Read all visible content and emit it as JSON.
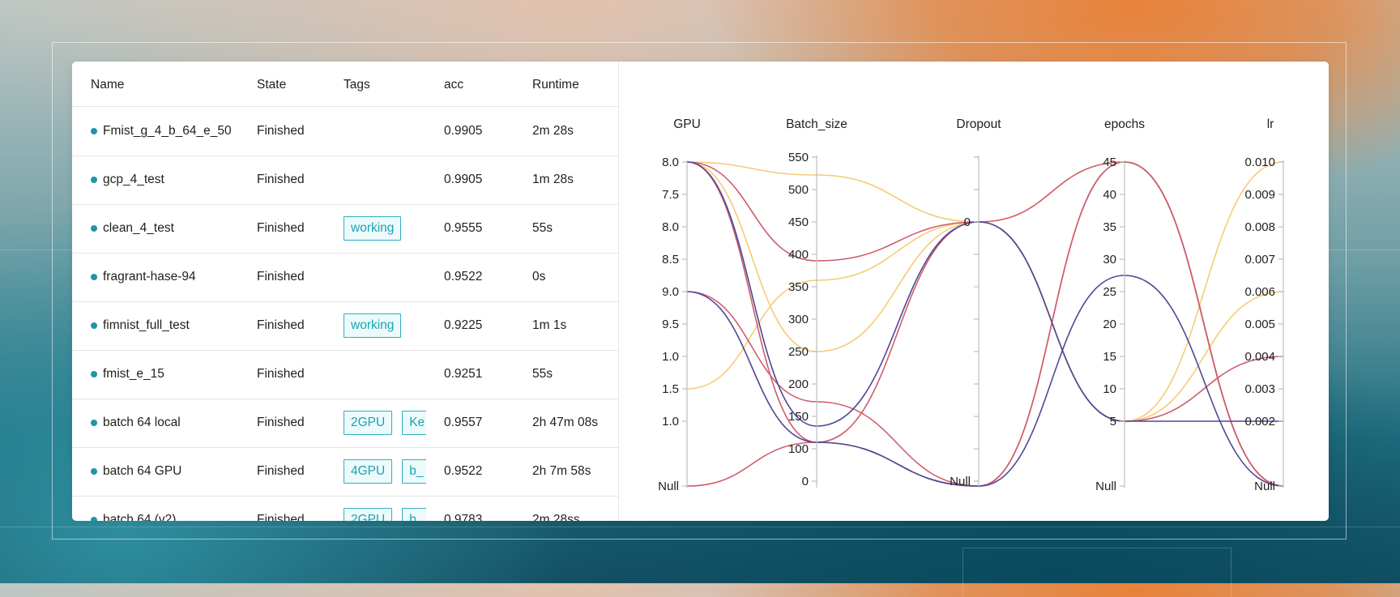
{
  "table": {
    "columns": [
      "Name",
      "State",
      "Tags",
      "acc",
      "Runtime"
    ],
    "rows": [
      {
        "name": "Fmist_g_4_b_64_e_50",
        "state": "Finished",
        "tags": [],
        "acc": "0.9905",
        "runtime": "2m 28s"
      },
      {
        "name": "gcp_4_test",
        "state": "Finished",
        "tags": [],
        "acc": "0.9905",
        "runtime": "1m 28s"
      },
      {
        "name": "clean_4_test",
        "state": "Finished",
        "tags": [
          "working"
        ],
        "acc": "0.9555",
        "runtime": "55s"
      },
      {
        "name": "fragrant-hase-94",
        "state": "Finished",
        "tags": [],
        "acc": "0.9522",
        "runtime": "0s"
      },
      {
        "name": "fimnist_full_test",
        "state": "Finished",
        "tags": [
          "working"
        ],
        "acc": "0.9225",
        "runtime": "1m 1s"
      },
      {
        "name": "fmist_e_15",
        "state": "Finished",
        "tags": [],
        "acc": "0.9251",
        "runtime": "55s"
      },
      {
        "name": "batch 64 local",
        "state": "Finished",
        "tags": [
          "2GPU",
          "Ke"
        ],
        "acc": "0.9557",
        "runtime": "2h 47m 08s"
      },
      {
        "name": "batch 64 GPU",
        "state": "Finished",
        "tags": [
          "4GPU",
          "b_"
        ],
        "acc": "0.9522",
        "runtime": "2h 7m 58s"
      },
      {
        "name": "batch 64 (v2)",
        "state": "Finished",
        "tags": [
          "2GPU",
          "b_"
        ],
        "acc": "0.9783",
        "runtime": "2m 28ss"
      }
    ]
  },
  "chart_data": {
    "type": "parallel_coordinates",
    "axes": [
      {
        "name": "GPU",
        "ticks": [
          "8.0",
          "7.5",
          "8.0",
          "8.5",
          "9.0",
          "9.5",
          "1.0",
          "1.5",
          "1.0",
          "Null"
        ]
      },
      {
        "name": "Batch_size",
        "ticks": [
          "550",
          "500",
          "450",
          "400",
          "350",
          "300",
          "250",
          "200",
          "150",
          "100",
          "0"
        ]
      },
      {
        "name": "Dropout",
        "ticks": [
          "0",
          "Null"
        ]
      },
      {
        "name": "epochs",
        "ticks": [
          "45",
          "40",
          "35",
          "30",
          "25",
          "20",
          "15",
          "10",
          "5",
          "Null"
        ]
      },
      {
        "name": "lr",
        "ticks": [
          "0.010",
          "0.009",
          "0.008",
          "0.007",
          "0.006",
          "0.005",
          "0.004",
          "0.003",
          "0.002",
          "Null"
        ]
      }
    ],
    "series": [
      {
        "color": "#f6cc76",
        "values": [
          "8.0",
          "~500",
          "0",
          "45",
          "Null"
        ]
      },
      {
        "color": "#f6cc76",
        "values": [
          "1.5",
          "~350",
          "0",
          "5",
          "0.010"
        ]
      },
      {
        "color": "#f6cc76",
        "values": [
          "8.0",
          "250",
          "0",
          "5",
          "0.006"
        ]
      },
      {
        "color": "#cf5c6c",
        "values": [
          "Null",
          "~100",
          "0",
          "45",
          "Null"
        ]
      },
      {
        "color": "#cf5c6c",
        "values": [
          "8.0",
          "~100",
          "Null",
          "45",
          "Null"
        ]
      },
      {
        "color": "#cf5c6c",
        "values": [
          "9.0",
          "~200",
          "Null",
          "45",
          "Null"
        ]
      },
      {
        "color": "#cf5c6c",
        "values": [
          "8.0",
          "~430",
          "0",
          "5",
          "0.004"
        ]
      },
      {
        "color": "#4f4796",
        "values": [
          "8.0",
          "~140",
          "0",
          "5",
          "0.002"
        ]
      },
      {
        "color": "#4f4796",
        "values": [
          "9.0",
          "~100",
          "Null",
          "25",
          "Null"
        ]
      }
    ]
  }
}
